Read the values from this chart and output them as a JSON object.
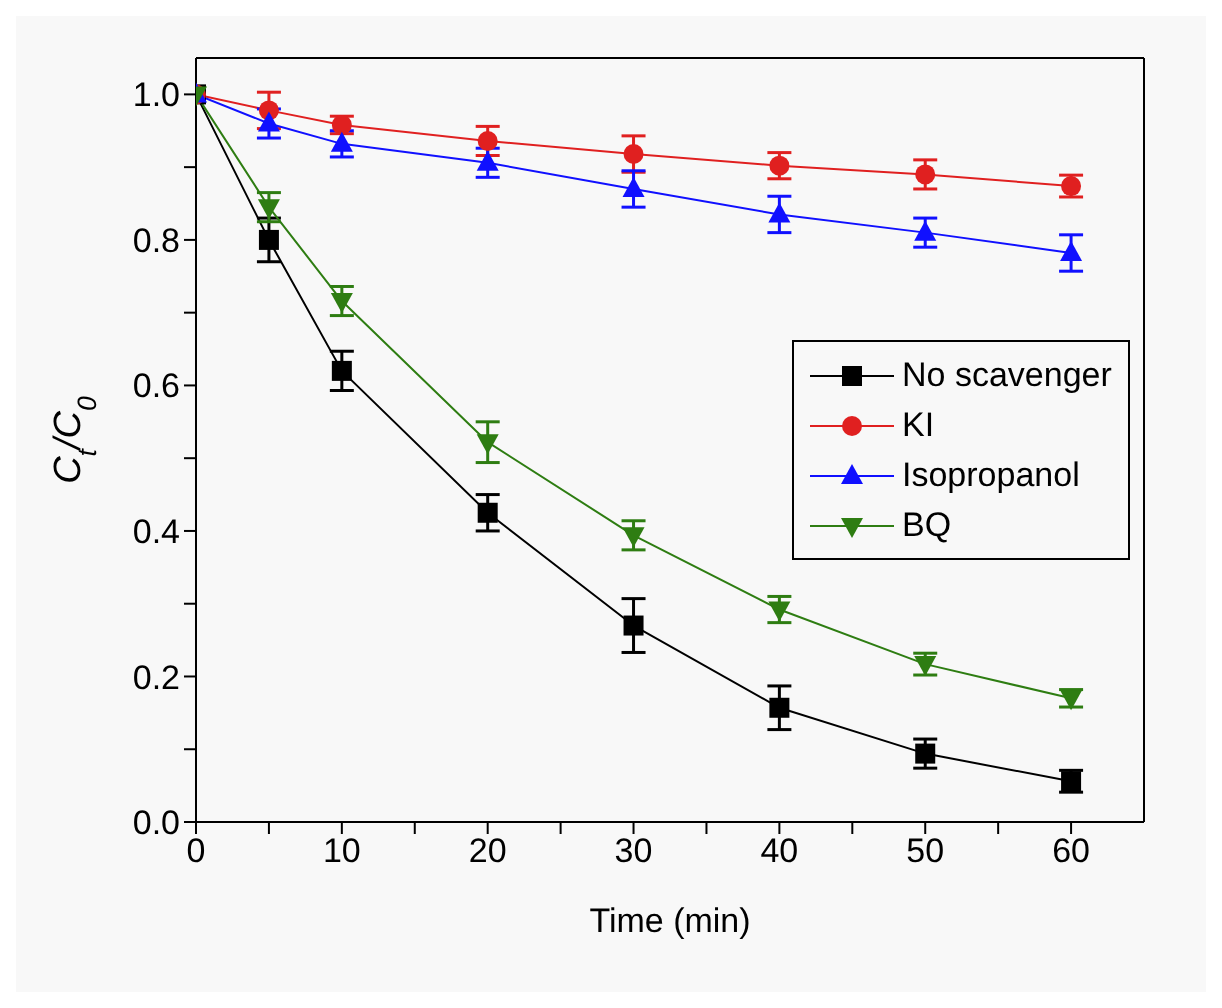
{
  "chart_data": {
    "type": "line",
    "xlabel": "Time (min)",
    "ylabel": "C$_{t}$/C$_{0}$",
    "x": [
      0,
      5,
      10,
      20,
      30,
      40,
      50,
      60
    ],
    "series": [
      {
        "name": "No scavenger",
        "color": "#000000",
        "marker": "square",
        "values": [
          1.0,
          0.8,
          0.62,
          0.425,
          0.27,
          0.157,
          0.094,
          0.056
        ],
        "errors": [
          null,
          0.03,
          0.027,
          0.025,
          0.037,
          0.03,
          0.02,
          0.015
        ]
      },
      {
        "name": "KI",
        "color": "#e02020",
        "marker": "circle",
        "values": [
          1.0,
          0.978,
          0.958,
          0.936,
          0.918,
          0.902,
          0.89,
          0.874
        ],
        "errors": [
          null,
          0.025,
          0.012,
          0.02,
          0.025,
          0.018,
          0.02,
          0.015
        ]
      },
      {
        "name": "Isopropanol",
        "color": "#1010ff",
        "marker": "triangle",
        "values": [
          1.0,
          0.96,
          0.932,
          0.906,
          0.87,
          0.835,
          0.81,
          0.782
        ],
        "errors": [
          null,
          0.02,
          0.018,
          0.02,
          0.025,
          0.025,
          0.02,
          0.025
        ]
      },
      {
        "name": "BQ",
        "color": "#2e7d12",
        "marker": "triangle-down",
        "values": [
          1.0,
          0.845,
          0.716,
          0.522,
          0.394,
          0.292,
          0.217,
          0.17
        ],
        "errors": [
          null,
          0.02,
          0.02,
          0.028,
          0.02,
          0.018,
          0.015,
          0.012
        ]
      }
    ],
    "xlim": [
      0,
      65
    ],
    "xticks": [
      0,
      {
        "value": 5,
        "label": null
      },
      10,
      {
        "value": 15,
        "label": null
      },
      20,
      {
        "value": 25,
        "label": null
      },
      30,
      {
        "value": 35,
        "label": null
      },
      40,
      {
        "value": 45,
        "label": null
      },
      50,
      {
        "value": 55,
        "label": null
      },
      60
    ],
    "ylim": [
      0,
      1.05
    ],
    "yticks": [
      "0.0",
      {
        "value": 0.1,
        "label": null
      },
      0.2,
      {
        "value": 0.3,
        "label": null
      },
      0.4,
      {
        "value": 0.5,
        "label": null
      },
      0.6,
      {
        "value": 0.7,
        "label": null
      },
      0.8,
      {
        "value": 0.9,
        "label": null
      },
      "1.0"
    ],
    "grid": false,
    "legend": "right",
    "line_style": "solid"
  }
}
